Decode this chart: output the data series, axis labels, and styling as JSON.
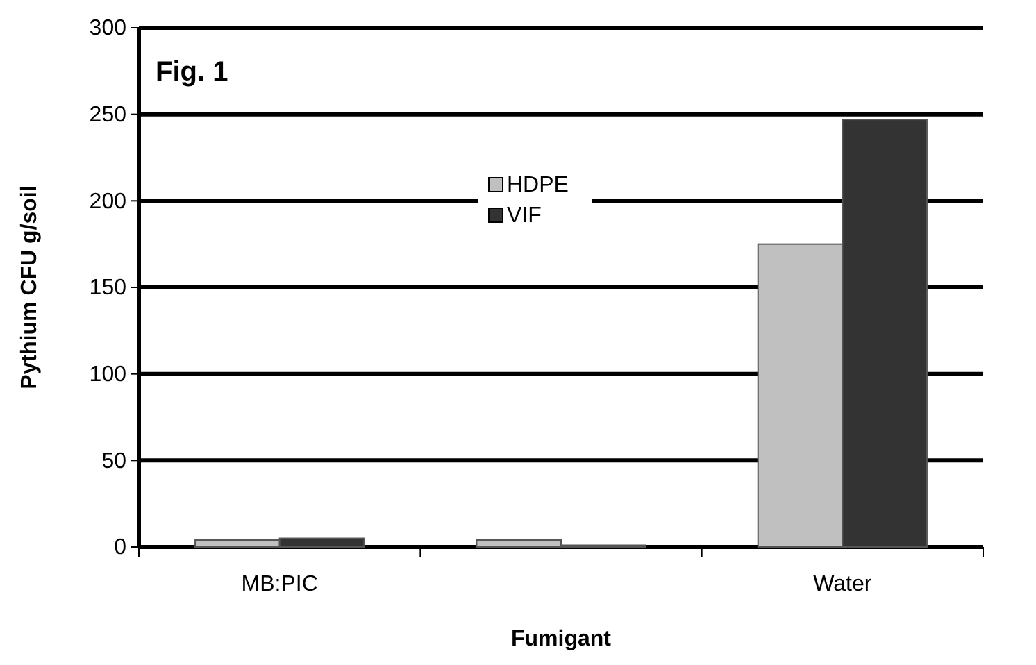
{
  "chart_data": {
    "type": "bar",
    "title": "Fig. 1",
    "xlabel": "Fumigant",
    "ylabel": "Pythium CFU g/soil",
    "categories": [
      "MB:PIC",
      null,
      "Water"
    ],
    "series": [
      {
        "name": "HDPE",
        "color": "#c0c0c0",
        "values": [
          4,
          4,
          175
        ]
      },
      {
        "name": "VIF",
        "color": "#333333",
        "values": [
          5,
          1,
          247
        ]
      }
    ],
    "ylim": [
      0,
      300
    ],
    "yticks": [
      0,
      50,
      100,
      150,
      200,
      250,
      300
    ],
    "grid": "y",
    "legend": "top"
  }
}
